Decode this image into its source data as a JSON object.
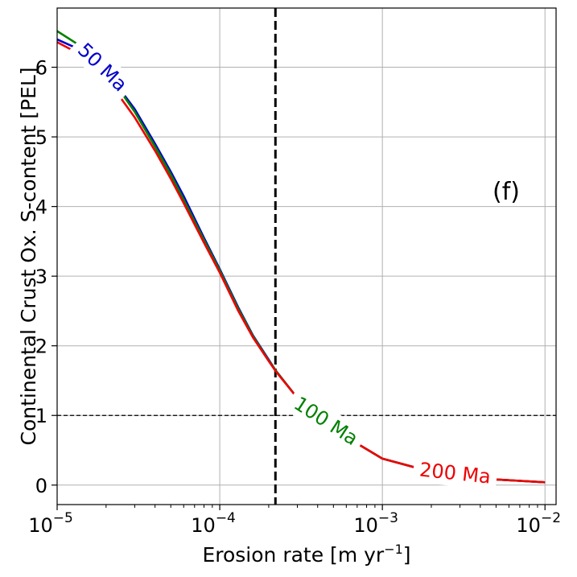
{
  "chart_data": {
    "type": "line",
    "xscale": "log",
    "xlim": [
      1e-05,
      0.0117
    ],
    "ylim": [
      -0.28,
      6.85
    ],
    "x_ticks": [
      1e-05,
      0.0001,
      0.001,
      0.01
    ],
    "x_tick_labels": [
      {
        "base": "10",
        "exp": "−5"
      },
      {
        "base": "10",
        "exp": "−4"
      },
      {
        "base": "10",
        "exp": "−3"
      },
      {
        "base": "10",
        "exp": "−2"
      }
    ],
    "y_ticks": [
      0,
      1,
      2,
      3,
      4,
      5,
      6
    ],
    "y_tick_labels": [
      "0",
      "1",
      "2",
      "3",
      "4",
      "5",
      "6"
    ],
    "xlabel": {
      "text": "Erosion rate [m yr",
      "sup": "−1",
      "close": "]"
    },
    "ylabel": "Continental Crust Ox. S-content [PEL]",
    "grid": true,
    "panel_label": "(f)",
    "vline_x": 0.00022,
    "hline_y": 1,
    "series": [
      {
        "name": "50 Ma",
        "color": "#0000cc",
        "x": [
          1e-05,
          1.3e-05,
          2e-05,
          3e-05,
          4e-05,
          5e-05,
          6e-05,
          8e-05,
          0.0001,
          0.00013,
          0.00016,
          0.0002,
          0.00022,
          0.0003,
          0.0005,
          0.001,
          0.002,
          0.003,
          0.005,
          0.01
        ],
        "y": [
          6.4,
          6.28,
          5.95,
          5.4,
          4.9,
          4.5,
          4.15,
          3.55,
          3.1,
          2.55,
          2.15,
          1.8,
          1.65,
          1.25,
          0.8,
          0.38,
          0.19,
          0.12,
          0.08,
          0.04
        ]
      },
      {
        "name": "100 Ma",
        "color": "#008000",
        "x": [
          1e-05,
          1.3e-05,
          2e-05,
          3e-05,
          4e-05,
          5e-05,
          6e-05,
          8e-05,
          0.0001,
          0.00013,
          0.00016,
          0.0002,
          0.00022,
          0.0003,
          0.0005,
          0.001,
          0.002,
          0.003,
          0.005,
          0.01
        ],
        "y": [
          6.52,
          6.35,
          5.95,
          5.36,
          4.86,
          4.46,
          4.1,
          3.52,
          3.08,
          2.53,
          2.14,
          1.79,
          1.65,
          1.25,
          0.8,
          0.38,
          0.19,
          0.12,
          0.08,
          0.04
        ]
      },
      {
        "name": "200 Ma",
        "color": "#ee0000",
        "x": [
          1e-05,
          1.3e-05,
          2e-05,
          3e-05,
          4e-05,
          5e-05,
          6e-05,
          8e-05,
          0.0001,
          0.00013,
          0.00016,
          0.0002,
          0.00022,
          0.0003,
          0.0005,
          0.001,
          0.002,
          0.003,
          0.005,
          0.01
        ],
        "y": [
          6.36,
          6.22,
          5.85,
          5.28,
          4.8,
          4.4,
          4.05,
          3.48,
          3.05,
          2.5,
          2.12,
          1.78,
          1.64,
          1.25,
          0.8,
          0.38,
          0.19,
          0.12,
          0.08,
          0.04
        ]
      }
    ],
    "series_labels": [
      {
        "series": 0,
        "text": "50 Ma",
        "x": 1.9e-05,
        "y": 6.0,
        "angle": 44
      },
      {
        "series": 1,
        "text": "100 Ma",
        "x": 0.00045,
        "y": 0.92,
        "angle": 33
      },
      {
        "series": 2,
        "text": "200 Ma",
        "x": 0.0028,
        "y": 0.17,
        "angle": 6
      }
    ]
  }
}
